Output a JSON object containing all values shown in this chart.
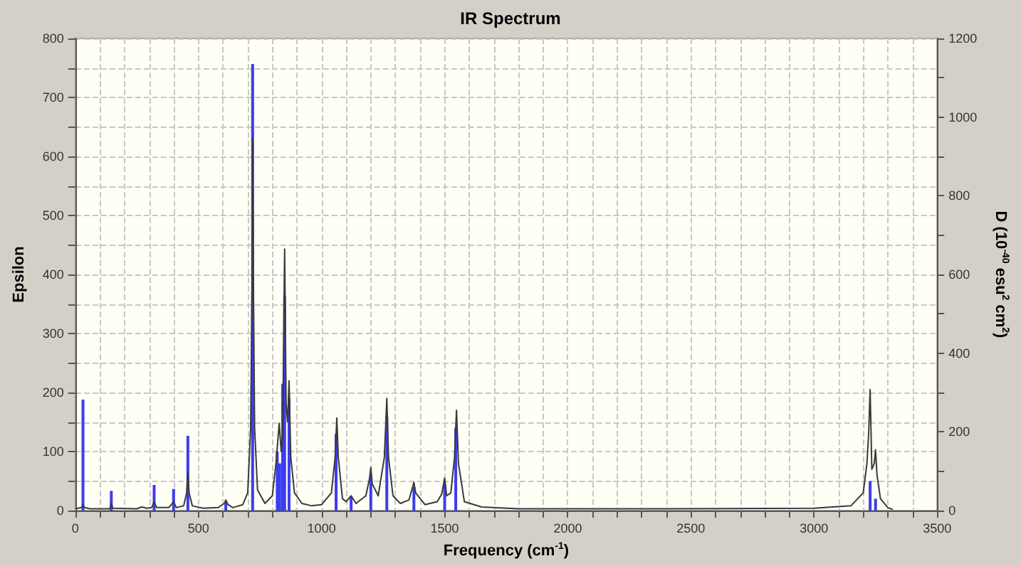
{
  "chart_data": {
    "type": "line",
    "title": "IR Spectrum",
    "xlabel": "Frequency (cm$^{-1}$)",
    "ylabel": "Epsilon",
    "y2label": "D (10$^{-40}$ esu$^{2}$ cm$^{2}$)",
    "xlim": [
      0,
      3500
    ],
    "xticks": [
      0,
      {
        "value": 100,
        "label": null
      },
      {
        "value": 200,
        "label": null
      },
      {
        "value": 300,
        "label": null
      },
      {
        "value": 400,
        "label": null
      },
      500,
      {
        "value": 600,
        "label": null
      },
      {
        "value": 700,
        "label": null
      },
      {
        "value": 800,
        "label": null
      },
      {
        "value": 900,
        "label": null
      },
      1000,
      {
        "value": 1100,
        "label": null
      },
      {
        "value": 1200,
        "label": null
      },
      {
        "value": 1300,
        "label": null
      },
      {
        "value": 1400,
        "label": null
      },
      1500,
      {
        "value": 1600,
        "label": null
      },
      {
        "value": 1700,
        "label": null
      },
      {
        "value": 1800,
        "label": null
      },
      {
        "value": 1900,
        "label": null
      },
      2000,
      {
        "value": 2100,
        "label": null
      },
      {
        "value": 2200,
        "label": null
      },
      {
        "value": 2300,
        "label": null
      },
      {
        "value": 2400,
        "label": null
      },
      2500,
      {
        "value": 2600,
        "label": null
      },
      {
        "value": 2700,
        "label": null
      },
      {
        "value": 2800,
        "label": null
      },
      {
        "value": 2900,
        "label": null
      },
      3000,
      {
        "value": 3100,
        "label": null
      },
      {
        "value": 3200,
        "label": null
      },
      {
        "value": 3300,
        "label": null
      },
      {
        "value": 3400,
        "label": null
      },
      3500
    ],
    "ylim": [
      0,
      800
    ],
    "yticks": [
      0,
      {
        "value": 50,
        "label": null
      },
      100,
      {
        "value": 150,
        "label": null
      },
      200,
      {
        "value": 250,
        "label": null
      },
      300,
      {
        "value": 350,
        "label": null
      },
      400,
      {
        "value": 450,
        "label": null
      },
      500,
      {
        "value": 550,
        "label": null
      },
      600,
      {
        "value": 650,
        "label": null
      },
      700,
      {
        "value": 750,
        "label": null
      },
      800
    ],
    "y2lim": [
      0,
      1200
    ],
    "y2ticks": [
      0,
      {
        "value": 100,
        "label": null
      },
      200,
      {
        "value": 300,
        "label": null
      },
      400,
      {
        "value": 500,
        "label": null
      },
      600,
      {
        "value": 700,
        "label": null
      },
      800,
      {
        "value": 900,
        "label": null
      },
      1000,
      {
        "value": 1100,
        "label": null
      },
      1200
    ],
    "grid": true,
    "marker": "none",
    "line_style": "solid",
    "series": [
      {
        "color": "#3a3a3a",
        "x": [
          0,
          25,
          31,
          37,
          60,
          140,
          146,
          152,
          250,
          270,
          290,
          310,
          320,
          330,
          380,
          399,
          410,
          440,
          452,
          457,
          462,
          475,
          520,
          580,
          605,
          611,
          620,
          640,
          680,
          700,
          712,
          718,
          720,
          723,
          728,
          740,
          770,
          800,
          815,
          828,
          836,
          842,
          850,
          856,
          862,
          868,
          875,
          890,
          920,
          960,
          1000,
          1040,
          1055,
          1062,
          1068,
          1085,
          1100,
          1120,
          1140,
          1180,
          1195,
          1200,
          1206,
          1230,
          1255,
          1265,
          1272,
          1290,
          1320,
          1355,
          1370,
          1375,
          1382,
          1420,
          1470,
          1488,
          1500,
          1508,
          1525,
          1540,
          1548,
          1556,
          1580,
          1650,
          1800,
          2400,
          3000,
          3150,
          3200,
          3215,
          3222,
          3228,
          3235,
          3245,
          3250,
          3256,
          3270,
          3300,
          3320
        ],
        "values": [
          3,
          5,
          10,
          5,
          3,
          3,
          12,
          4,
          3,
          6,
          4,
          5,
          15,
          5,
          5,
          15,
          5,
          8,
          30,
          65,
          30,
          8,
          4,
          5,
          12,
          18,
          10,
          5,
          10,
          30,
          140,
          400,
          630,
          400,
          140,
          35,
          12,
          25,
          80,
          148,
          100,
          130,
          443,
          180,
          150,
          220,
          90,
          30,
          12,
          8,
          10,
          30,
          90,
          157,
          90,
          20,
          15,
          25,
          12,
          25,
          55,
          73,
          45,
          25,
          90,
          190,
          90,
          25,
          12,
          18,
          40,
          48,
          30,
          10,
          15,
          28,
          55,
          25,
          30,
          90,
          170,
          80,
          15,
          6,
          3,
          3,
          4,
          8,
          30,
          80,
          130,
          205,
          70,
          80,
          103,
          60,
          20,
          5,
          2
        ]
      },
      {
        "type": "bar",
        "axis": "y2",
        "color": "#3c3cf0",
        "x": [
          31,
          146,
          320,
          399,
          457,
          611,
          720,
          820,
          830,
          842,
          850,
          868,
          1059,
          1120,
          1200,
          1265,
          1375,
          1500,
          1545,
          3228,
          3250
        ],
        "values": [
          282,
          50,
          65,
          55,
          190,
          22,
          1135,
          150,
          120,
          322,
          545,
          285,
          195,
          35,
          90,
          240,
          60,
          68,
          210,
          75,
          30
        ]
      }
    ]
  }
}
